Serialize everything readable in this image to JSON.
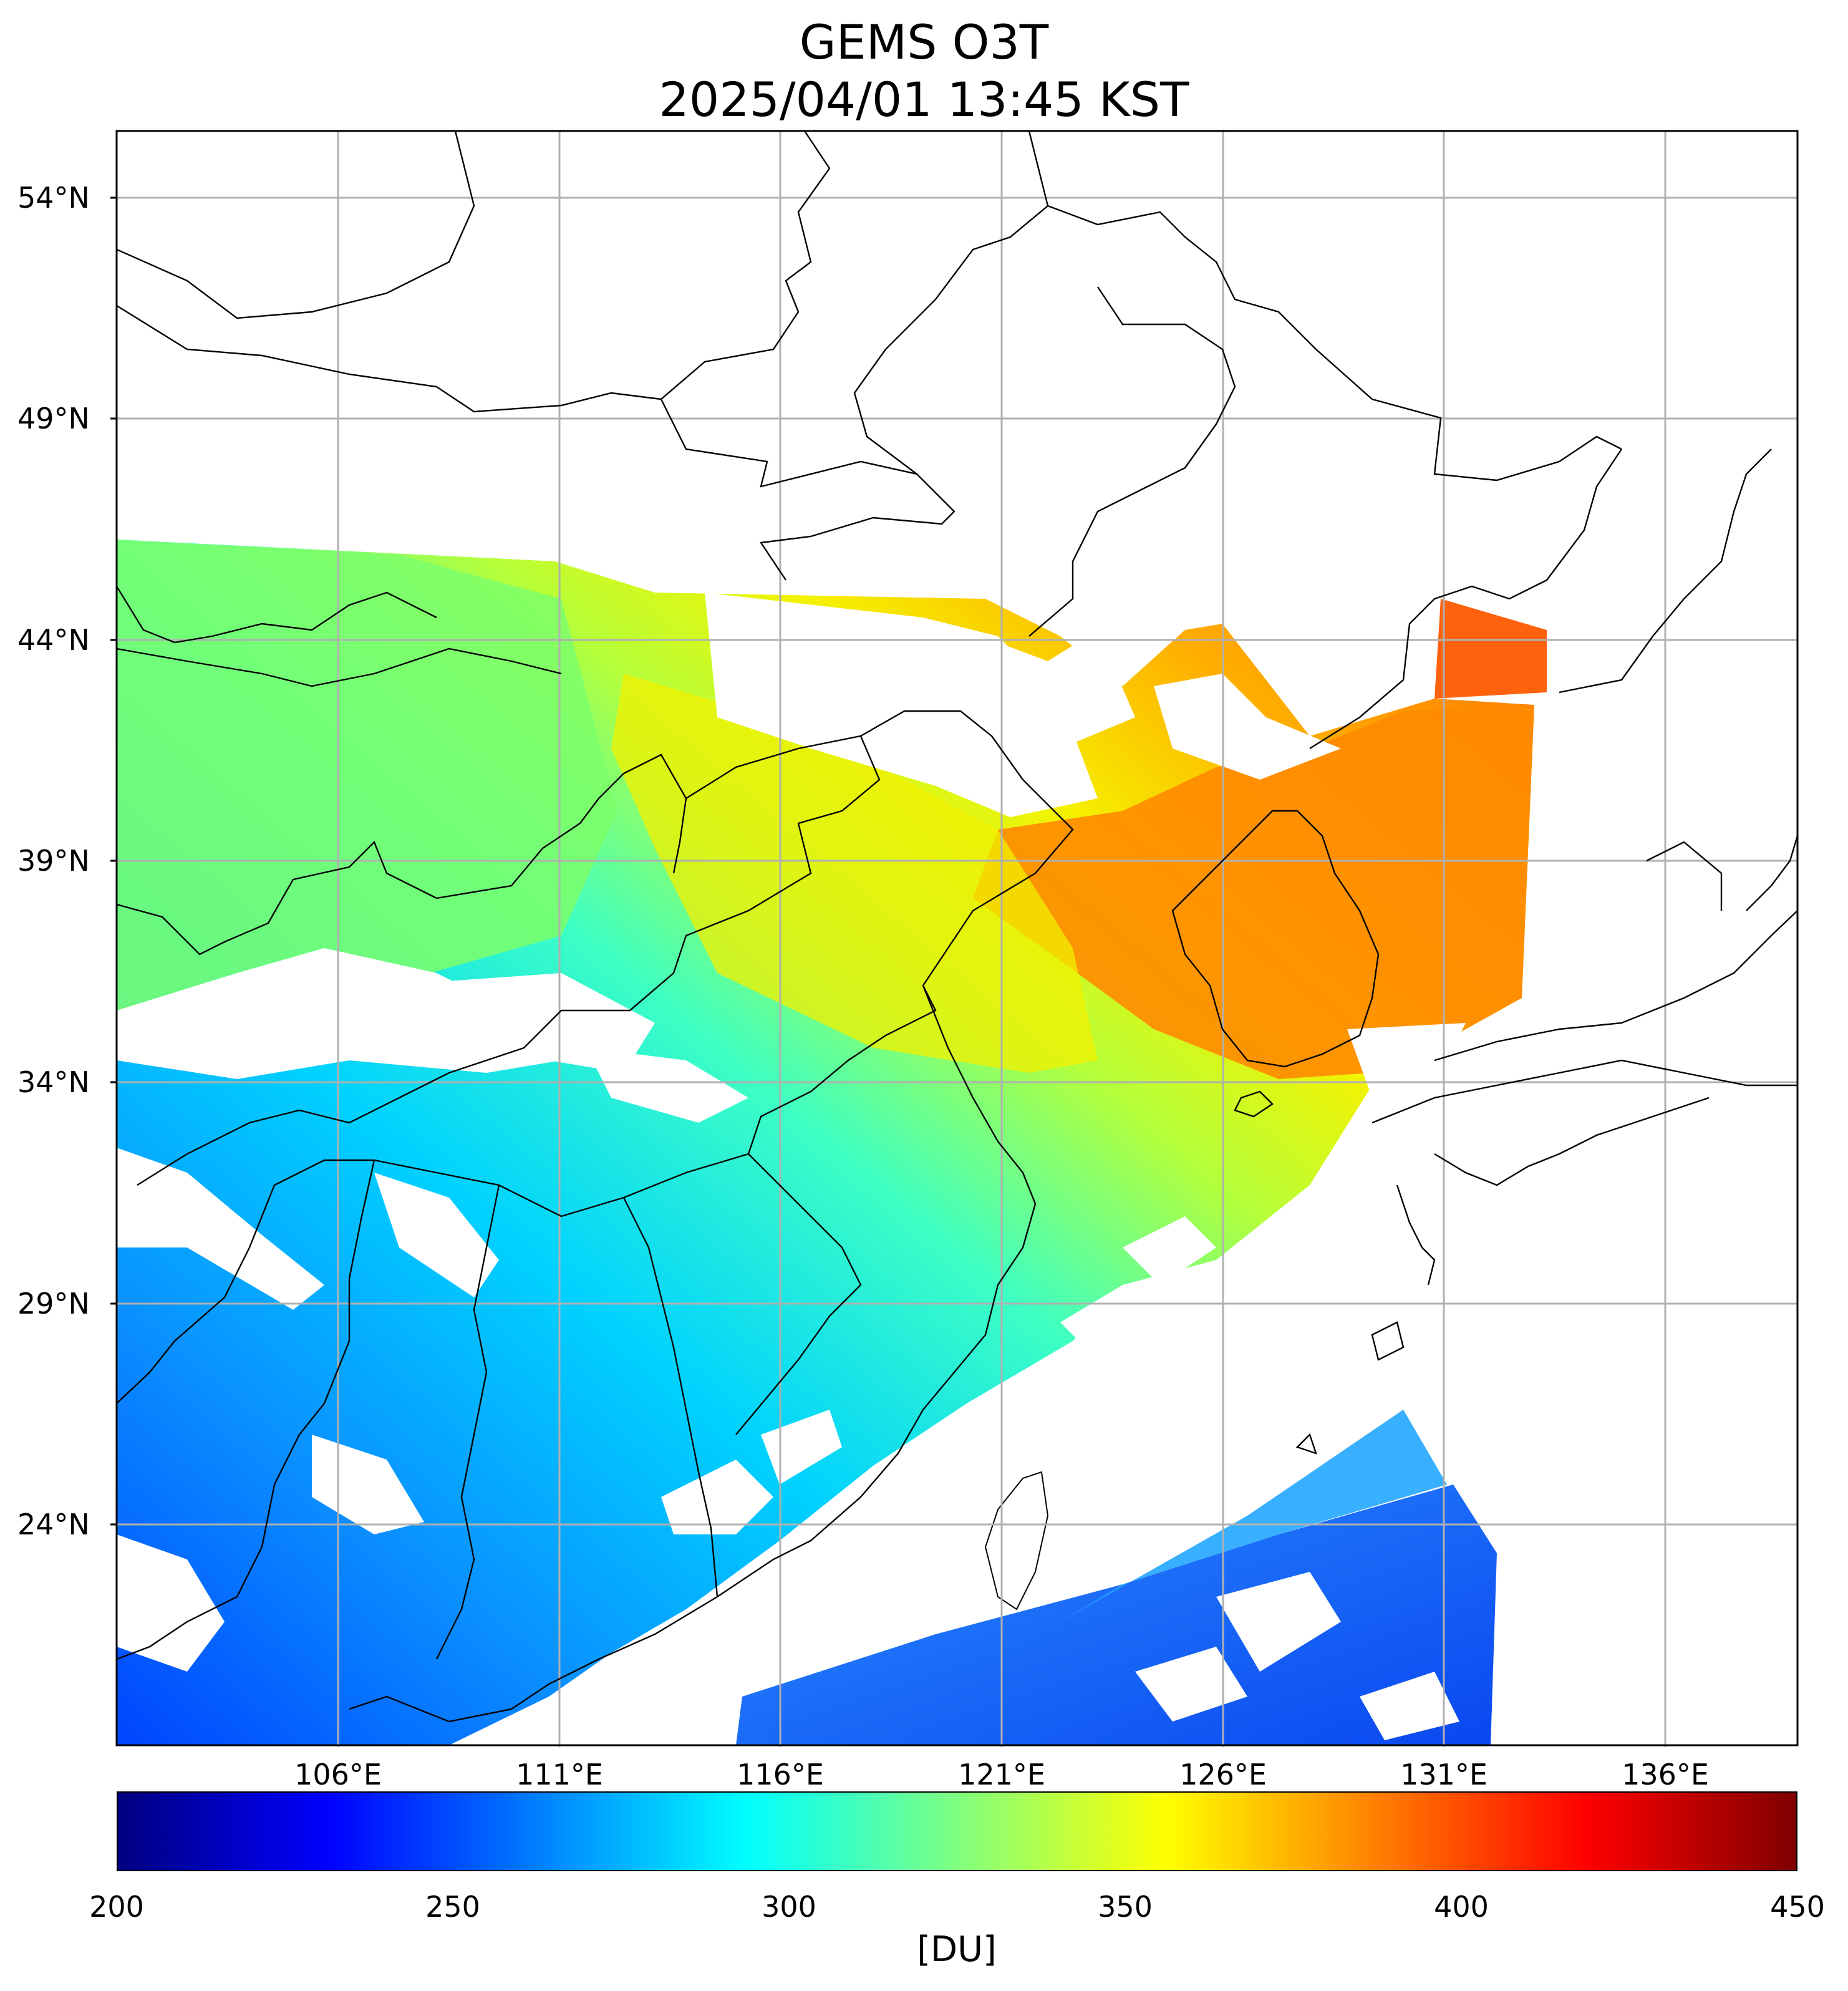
{
  "title": {
    "line1": "GEMS O3T",
    "line2": "2025/04/01 13:45 KST"
  },
  "map": {
    "lat_labels": [
      "54°N",
      "49°N",
      "44°N",
      "39°N",
      "34°N",
      "29°N",
      "24°N"
    ],
    "lon_labels": [
      "106°E",
      "111°E",
      "116°E",
      "121°E",
      "126°E",
      "131°E",
      "136°E"
    ],
    "lat_range": [
      18.8,
      55.5
    ],
    "lon_range": [
      101,
      139
    ]
  },
  "colorbar": {
    "colormap": "jet",
    "min": 200,
    "max": 450,
    "tick_labels": [
      "200",
      "250",
      "300",
      "350",
      "400",
      "450"
    ],
    "unit_label": "[DU]",
    "gradient_colors": [
      "#00007f",
      "#0000ff",
      "#007fff",
      "#00ffff",
      "#7fff7f",
      "#ffff00",
      "#ff7f00",
      "#ff0000",
      "#7f0000"
    ]
  }
}
